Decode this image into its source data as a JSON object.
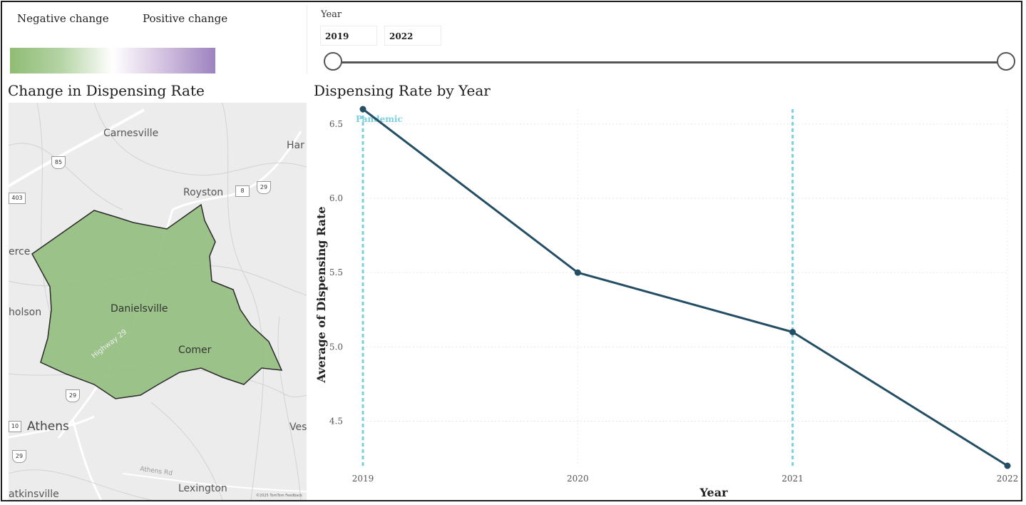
{
  "legend": {
    "negative_label": "Negative change",
    "positive_label": "Positive change",
    "negative_color": "#8fbc74",
    "positive_color": "#9d83bf"
  },
  "year_filter": {
    "title": "Year",
    "start_value": "2019",
    "end_value": "2022",
    "range": [
      2019,
      2022
    ]
  },
  "map_panel": {
    "title": "Change in Dispensing Rate",
    "county_fill": "#94bf80",
    "places": {
      "carnesville": "Carnesville",
      "hartwell": "Har",
      "royston": "Royston",
      "pierce": "erce",
      "nicholson": "holson",
      "danielsville": "Danielsville",
      "comer": "Comer",
      "athens": "Athens",
      "vesta": "Ves",
      "watkinsville": "atkinsville",
      "lexington": "Lexington",
      "highway": "Highway 29",
      "athens_rd": "Athens Rd"
    },
    "shields": {
      "i85": "85",
      "r403": "403",
      "r8": "8",
      "r29a": "29",
      "r29b": "29",
      "r10": "10",
      "r29c": "29"
    },
    "attribution": "©2025 TomTom Feedback"
  },
  "chart_data": {
    "type": "line",
    "title": "Dispensing Rate by Year",
    "xlabel": "Year",
    "ylabel": "Average of Dispensing Rate",
    "x": [
      2019,
      2020,
      2021,
      2022
    ],
    "x_tick_labels": [
      "2019",
      "2020",
      "2021",
      "2022"
    ],
    "y_ticks": [
      4.5,
      5.0,
      5.5,
      6.0,
      6.5
    ],
    "y_tick_labels": [
      "4.5",
      "5.0",
      "5.5",
      "6.0",
      "6.5"
    ],
    "ylim": [
      4.2,
      6.6
    ],
    "series": [
      {
        "values": [
          6.6,
          5.5,
          5.1,
          4.2
        ],
        "color": "#244e63"
      }
    ],
    "reference_lines": [
      {
        "x": 2019,
        "label": "Pandemic",
        "color": "#7ccfdc"
      },
      {
        "x": 2021,
        "label": "",
        "color": "#7ccfdc"
      }
    ],
    "grid": true
  }
}
